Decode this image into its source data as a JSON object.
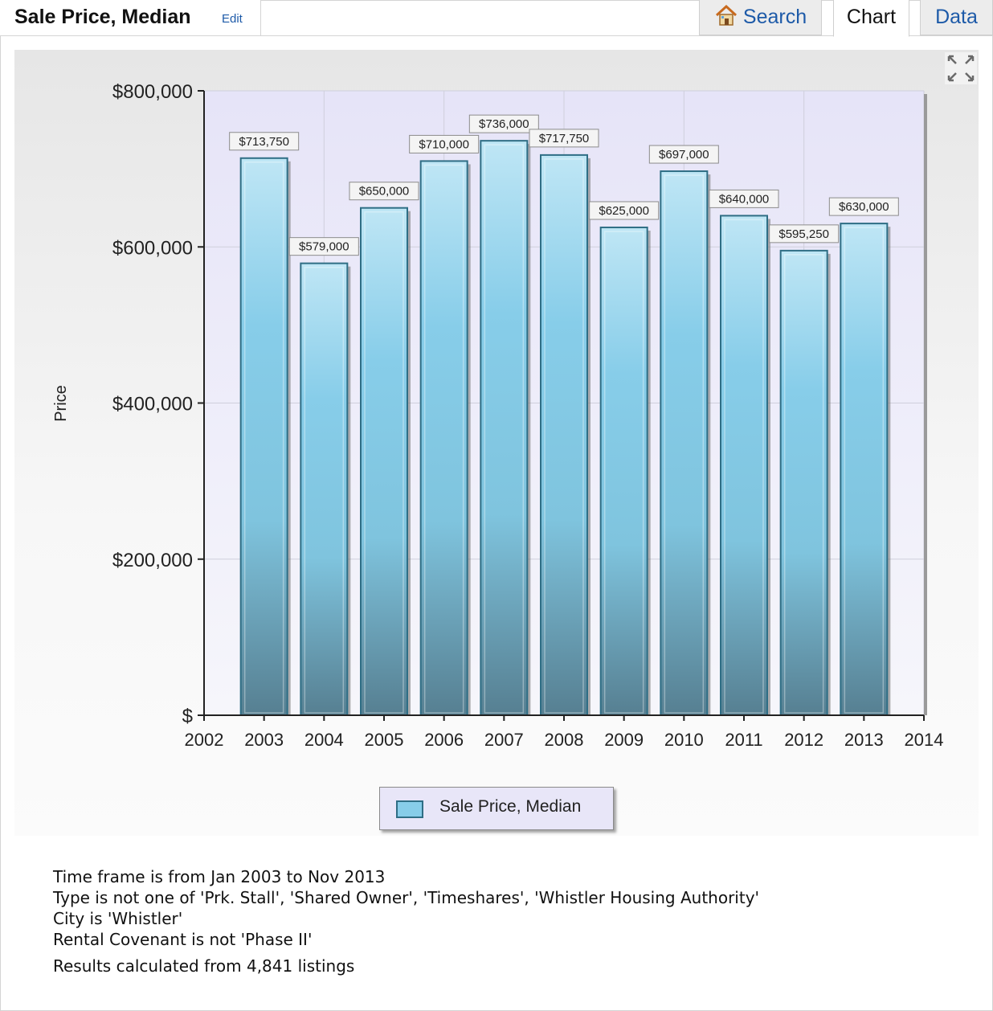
{
  "header": {
    "title": "Sale Price, Median",
    "edit_label": "Edit",
    "tabs": [
      {
        "label": "Search",
        "icon": "home-icon",
        "active": false
      },
      {
        "label": "Chart",
        "active": true
      },
      {
        "label": "Data",
        "active": false
      }
    ]
  },
  "chart_data": {
    "type": "bar",
    "title": "",
    "xlabel": "",
    "ylabel": "Price",
    "x_ticks": [
      "2002",
      "2003",
      "2004",
      "2005",
      "2006",
      "2007",
      "2008",
      "2009",
      "2010",
      "2011",
      "2012",
      "2013",
      "2014"
    ],
    "xlim": [
      2002,
      2014
    ],
    "y_ticks": [
      "$",
      "$200,000",
      "$400,000",
      "$600,000",
      "$800,000"
    ],
    "ylim": [
      0,
      800000
    ],
    "grid": true,
    "legend_position": "bottom-center",
    "series": [
      {
        "name": "Sale Price, Median",
        "color": "#87cde9",
        "points": [
          {
            "x": 2003,
            "y": 713750,
            "label": "$713,750"
          },
          {
            "x": 2004,
            "y": 579000,
            "label": "$579,000"
          },
          {
            "x": 2005,
            "y": 650000,
            "label": "$650,000"
          },
          {
            "x": 2006,
            "y": 710000,
            "label": "$710,000"
          },
          {
            "x": 2007,
            "y": 736000,
            "label": "$736,000"
          },
          {
            "x": 2008,
            "y": 717750,
            "label": "$717,750"
          },
          {
            "x": 2009,
            "y": 625000,
            "label": "$625,000"
          },
          {
            "x": 2010,
            "y": 697000,
            "label": "$697,000"
          },
          {
            "x": 2011,
            "y": 640000,
            "label": "$640,000"
          },
          {
            "x": 2012,
            "y": 595250,
            "label": "$595,250"
          },
          {
            "x": 2013,
            "y": 630000,
            "label": "$630,000"
          }
        ]
      }
    ]
  },
  "legend": {
    "label": "Sale Price, Median"
  },
  "notes": {
    "lines": [
      "Time frame is from Jan 2003 to Nov 2013",
      "Type is not one of 'Prk. Stall', 'Shared Owner', 'Timeshares', 'Whistler Housing Authority'",
      "City is 'Whistler'",
      "Rental Covenant is not 'Phase II'"
    ],
    "results": "Results calculated from 4,841 listings"
  },
  "colors": {
    "link": "#1d5aa8",
    "bar_fill": "#87cde9",
    "bar_border": "#2f6e85",
    "plot_background": "#eceafa"
  }
}
